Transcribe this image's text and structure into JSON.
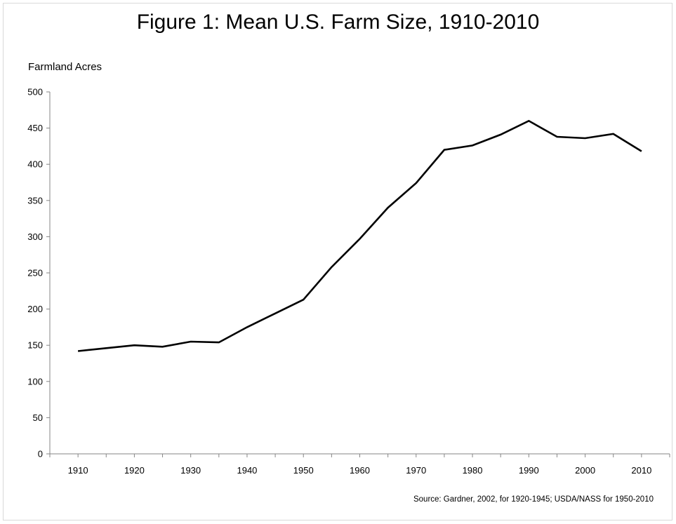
{
  "chart_data": {
    "type": "line",
    "title": "Figure 1: Mean U.S. Farm Size, 1910-2010",
    "ylabel": "Farmland Acres",
    "xlabel": "",
    "source": "Source: Gardner, 2002, for 1920-1945; USDA/NASS for 1950-2010",
    "xlim": [
      1905,
      2015
    ],
    "ylim": [
      0,
      500
    ],
    "x_ticks": [
      1910,
      1920,
      1930,
      1940,
      1950,
      1960,
      1970,
      1980,
      1990,
      2000,
      2010
    ],
    "y_ticks": [
      0,
      50,
      100,
      150,
      200,
      250,
      300,
      350,
      400,
      450,
      500
    ],
    "grid": false,
    "line_color": "#000000",
    "series": [
      {
        "x": [
          1910,
          1915,
          1920,
          1925,
          1930,
          1935,
          1940,
          1945,
          1950,
          1955,
          1960,
          1965,
          1970,
          1975,
          1980,
          1985,
          1990,
          1995,
          2000,
          2005,
          2010
        ],
        "values": [
          142,
          146,
          150,
          148,
          155,
          154,
          175,
          194,
          213,
          258,
          297,
          340,
          374,
          420,
          426,
          441,
          460,
          438,
          436,
          442,
          418
        ]
      }
    ]
  }
}
